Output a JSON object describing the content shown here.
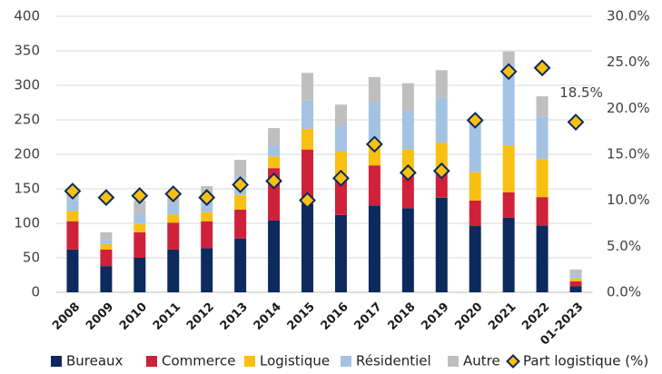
{
  "chart_data": {
    "type": "bar",
    "stacked": true,
    "categories": [
      "2008",
      "2009",
      "2010",
      "2011",
      "2012",
      "2013",
      "2014",
      "2015",
      "2016",
      "2017",
      "2018",
      "2019",
      "2020",
      "2021",
      "2022",
      "01-2023"
    ],
    "series": [
      {
        "name": "Bureaux",
        "color": "#0d2a5e",
        "values": [
          62,
          38,
          50,
          62,
          64,
          78,
          104,
          128,
          112,
          126,
          122,
          137,
          96,
          108,
          97,
          9
        ]
      },
      {
        "name": "Commerce",
        "color": "#d0213a",
        "values": [
          41,
          24,
          37,
          39,
          39,
          42,
          76,
          79,
          52,
          58,
          52,
          41,
          37,
          37,
          41,
          7
        ]
      },
      {
        "name": "Logistique",
        "color": "#f8c012",
        "values": [
          15,
          8,
          12,
          12,
          13,
          21,
          17,
          30,
          40,
          36,
          33,
          39,
          41,
          68,
          55,
          4
        ]
      },
      {
        "name": "Résidentiel",
        "color": "#a4c3e4",
        "values": [
          16,
          6,
          14,
          16,
          13,
          25,
          16,
          41,
          38,
          55,
          56,
          65,
          72,
          116,
          62,
          5
        ]
      },
      {
        "name": "Autre",
        "color": "#bfbfbf",
        "values": [
          16,
          11,
          20,
          18,
          25,
          26,
          25,
          40,
          30,
          37,
          40,
          40,
          5,
          20,
          29,
          8
        ]
      },
      {
        "name": "Part logistique (%)",
        "color": "#f8c012",
        "axis": "y2",
        "type": "marker",
        "values": [
          11.0,
          10.3,
          10.5,
          10.7,
          10.3,
          11.7,
          12.1,
          10.0,
          12.4,
          16.1,
          13.0,
          13.2,
          18.7,
          24.0,
          24.4,
          18.5
        ],
        "value_labels": [
          null,
          null,
          null,
          null,
          null,
          null,
          null,
          null,
          null,
          null,
          null,
          null,
          null,
          null,
          null,
          "18.5%"
        ]
      }
    ],
    "ylim": [
      0,
      400
    ],
    "yticks": [
      0,
      50,
      100,
      150,
      200,
      250,
      300,
      350,
      400
    ],
    "y2lim": [
      0,
      30
    ],
    "y2ticks": [
      {
        "value": 0,
        "label": "0.0%"
      },
      {
        "value": 5,
        "label": "5.0%"
      },
      {
        "value": 10,
        "label": "10.0%"
      },
      {
        "value": 15,
        "label": "15.0%"
      },
      {
        "value": 20,
        "label": "20.0%"
      },
      {
        "value": 25,
        "label": "25.0%"
      },
      {
        "value": 30,
        "label": "30.0%"
      }
    ],
    "grid": true,
    "legend": "bottom"
  }
}
